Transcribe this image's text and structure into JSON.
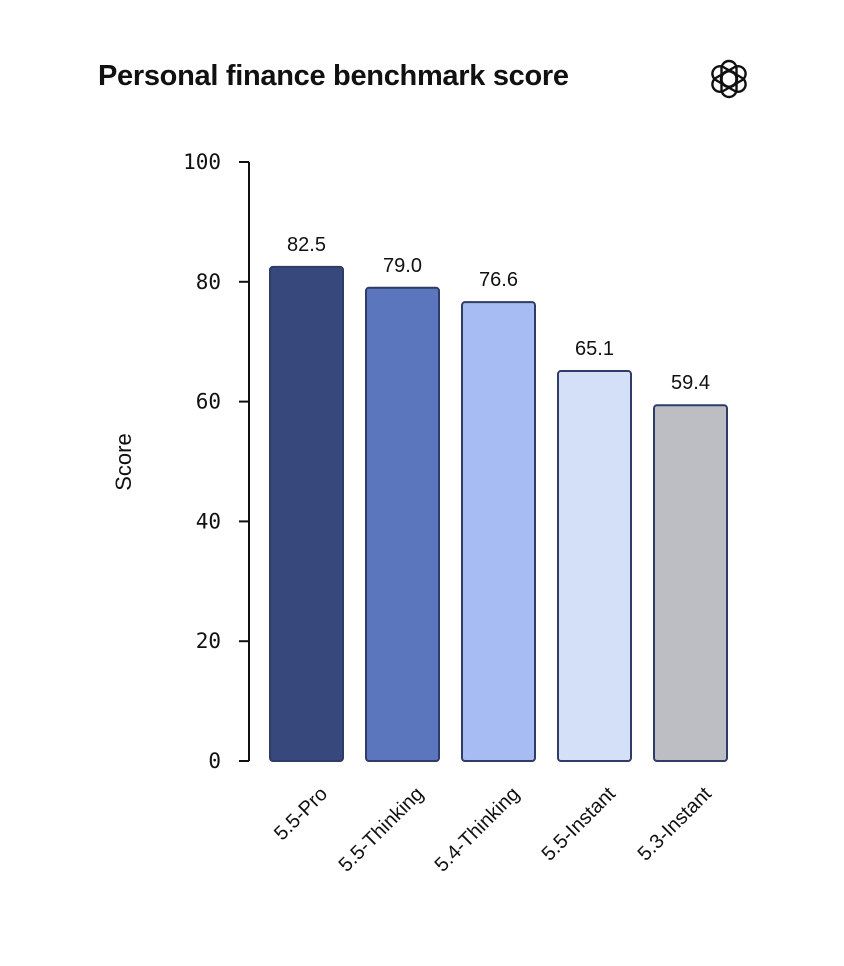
{
  "chart_data": {
    "type": "bar",
    "title": "Personal finance benchmark score",
    "xlabel": "",
    "ylabel": "Score",
    "categories": [
      "5.5-Pro",
      "5.5-Thinking",
      "5.4-Thinking",
      "5.5-Instant",
      "5.3-Instant"
    ],
    "values": [
      82.5,
      79.0,
      76.6,
      65.1,
      59.4
    ],
    "value_labels": [
      "82.5",
      "79.0",
      "76.6",
      "65.1",
      "59.4"
    ],
    "bar_colors": [
      "#36487c",
      "#5b76bd",
      "#a8bcf4",
      "#d4e0f8",
      "#bdbec3"
    ],
    "bar_outline": "#2e3c66",
    "ylim": [
      0,
      100
    ],
    "yticks": [
      0,
      20,
      40,
      60,
      80,
      100
    ],
    "grid": false,
    "legend": "none"
  },
  "brand": {
    "icon": "openai-logo-icon"
  }
}
